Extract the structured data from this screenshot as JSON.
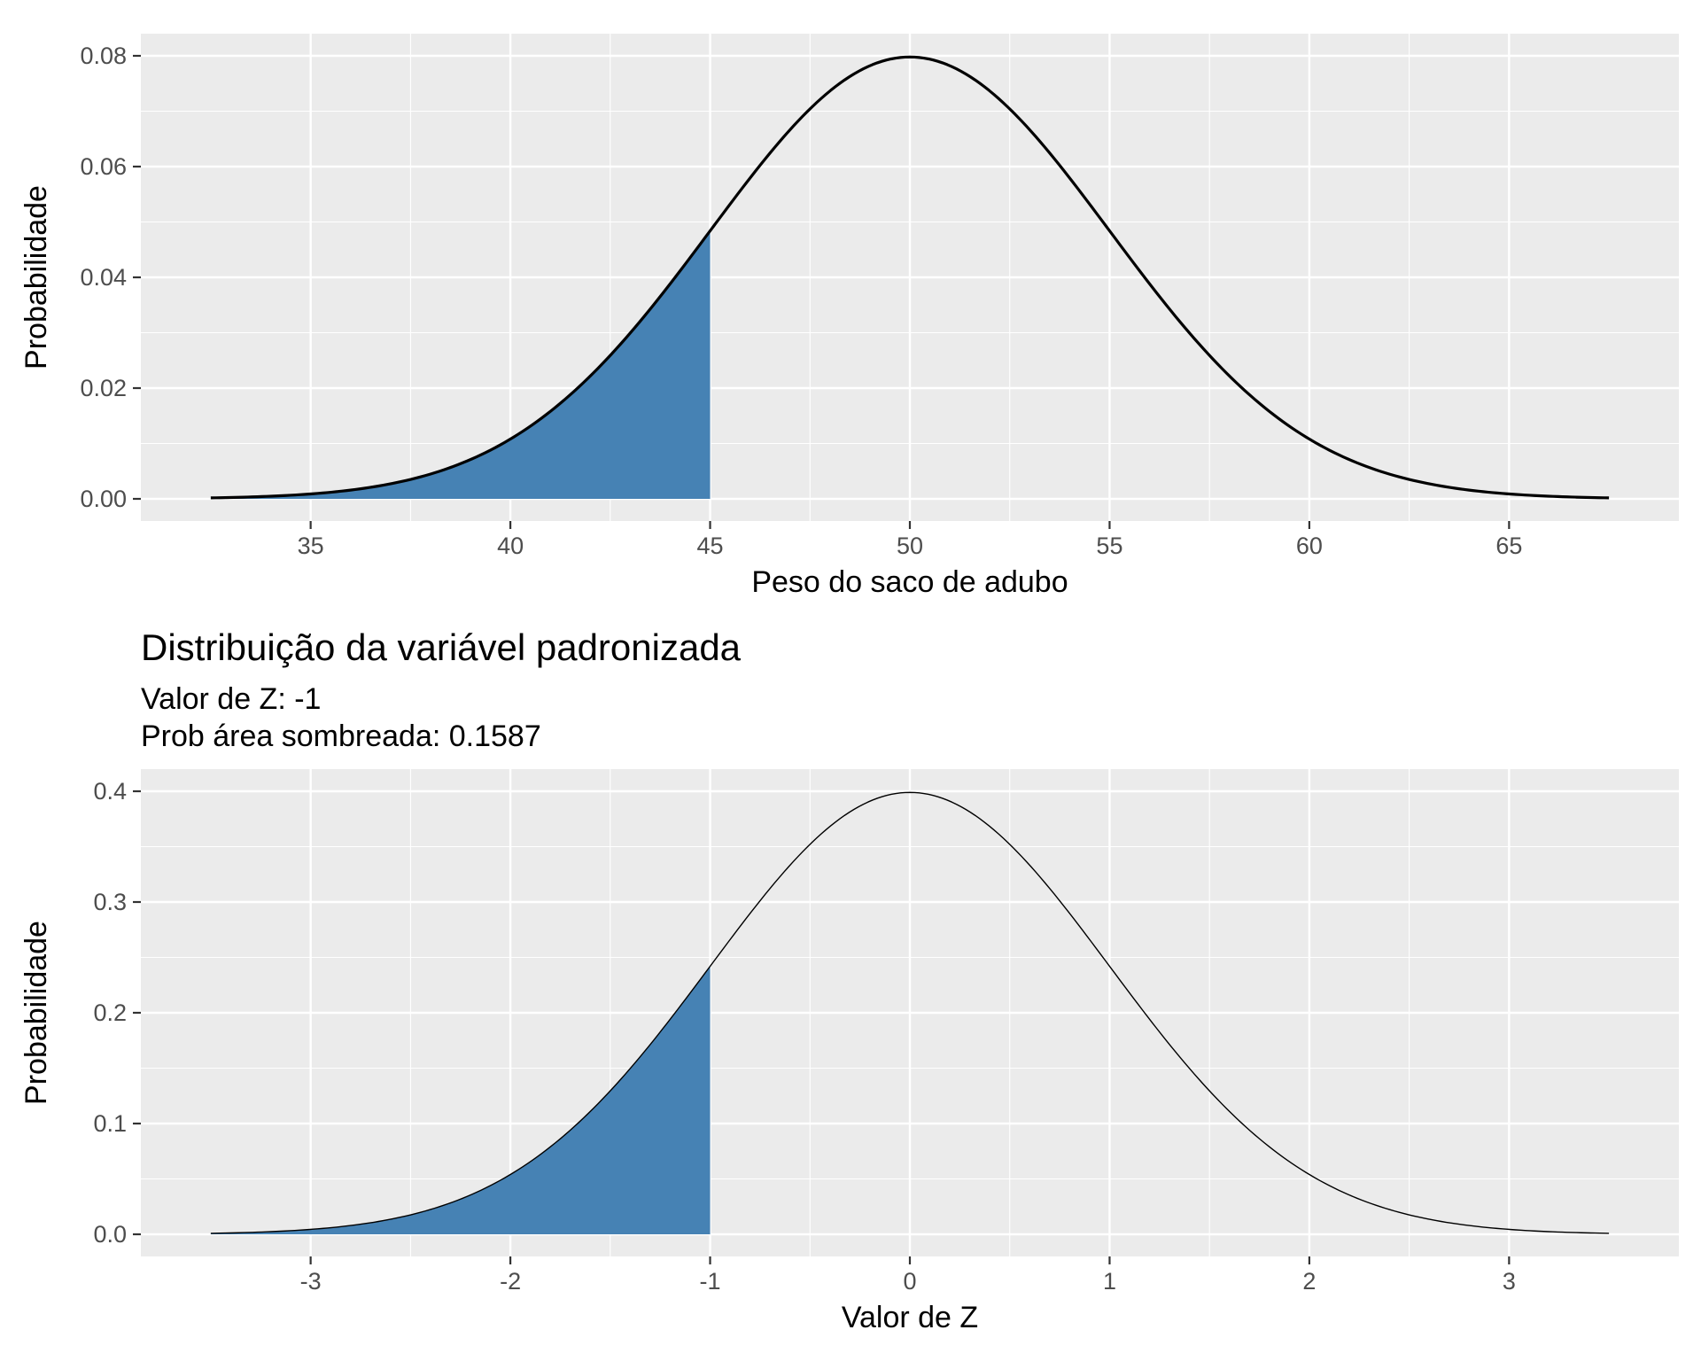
{
  "chart_data": [
    {
      "type": "area",
      "title": "",
      "subtitle": [],
      "xlabel": "Peso do saco de adubo",
      "ylabel": "Probabilidade",
      "xlim": [
        32.5,
        67.5
      ],
      "ylim": [
        0,
        0.08
      ],
      "xticks": [
        35,
        40,
        45,
        50,
        55,
        60,
        65
      ],
      "xtick_labels": [
        "35",
        "40",
        "45",
        "50",
        "55",
        "60",
        "65"
      ],
      "yticks": [
        0,
        0.02,
        0.04,
        0.06,
        0.08
      ],
      "ytick_labels": [
        "0.00",
        "0.02",
        "0.04",
        "0.06",
        "0.08"
      ],
      "grid": true,
      "series": [
        {
          "kind": "normal-density-line",
          "mean": 50,
          "sd": 5,
          "from": 32.5,
          "to": 67.5,
          "color": "#000000"
        },
        {
          "kind": "shaded-area",
          "from": 32.5,
          "to": 45,
          "color": "#4682B4"
        }
      ],
      "points": {
        "x": [
          32.5,
          35,
          37.5,
          40,
          42.5,
          45,
          47.5,
          50,
          52.5,
          55,
          57.5,
          60,
          62.5,
          65,
          67.5
        ],
        "y": [
          0.0002,
          0.0009,
          0.0035,
          0.0108,
          0.0259,
          0.0484,
          0.0704,
          0.0798,
          0.0704,
          0.0484,
          0.0259,
          0.0108,
          0.0035,
          0.0009,
          0.0002
        ]
      }
    },
    {
      "type": "area",
      "title": "Distribuição da variável padronizada",
      "subtitle": [
        "Valor de Z: -1",
        "Prob área sombreada: 0.1587"
      ],
      "xlabel": "Valor de Z",
      "ylabel": "Probabilidade",
      "xlim": [
        -3.5,
        3.5
      ],
      "ylim": [
        0,
        0.4
      ],
      "xticks": [
        -3,
        -2,
        -1,
        0,
        1,
        2,
        3
      ],
      "xtick_labels": [
        "-3",
        "-2",
        "-1",
        "0",
        "1",
        "2",
        "3"
      ],
      "yticks": [
        0,
        0.1,
        0.2,
        0.3,
        0.4
      ],
      "ytick_labels": [
        "0.0",
        "0.1",
        "0.2",
        "0.3",
        "0.4"
      ],
      "grid": true,
      "series": [
        {
          "kind": "normal-density-line",
          "mean": 0,
          "sd": 1,
          "from": -3.5,
          "to": 3.5,
          "color": "#000000"
        },
        {
          "kind": "shaded-area",
          "from": -3.5,
          "to": -1,
          "color": "#4682B4"
        }
      ],
      "points": {
        "x": [
          -3.5,
          -3,
          -2.5,
          -2,
          -1.5,
          -1,
          -0.5,
          0,
          0.5,
          1,
          1.5,
          2,
          2.5,
          3,
          3.5
        ],
        "y": [
          0.0009,
          0.0044,
          0.0175,
          0.054,
          0.1295,
          0.242,
          0.3521,
          0.3989,
          0.3521,
          0.242,
          0.1295,
          0.054,
          0.0175,
          0.0044,
          0.0009
        ]
      }
    }
  ],
  "colors": {
    "panel_background": "#EBEBEB",
    "grid": "#FFFFFF",
    "fill": "#4682B4",
    "line": "#000000",
    "tick_text": "#4D4D4D"
  }
}
